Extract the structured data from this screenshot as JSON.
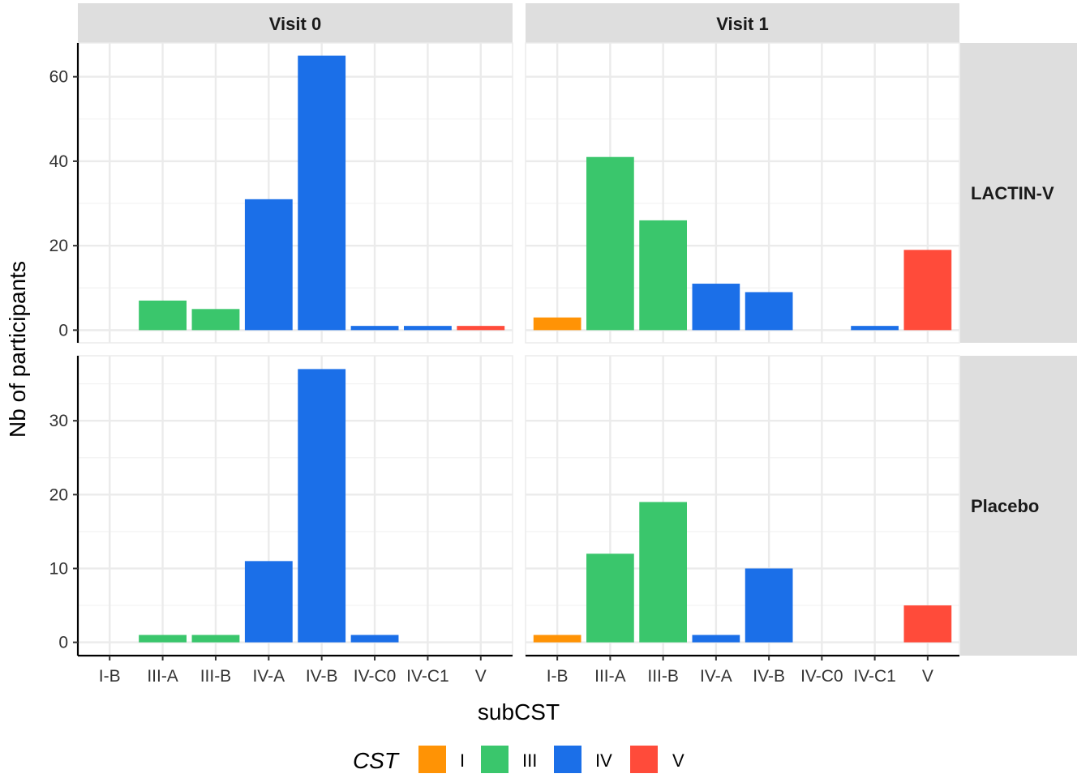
{
  "chart_data": {
    "type": "bar",
    "xlabel": "subCST",
    "ylabel": "Nb of participants",
    "categories": [
      "I-B",
      "III-A",
      "III-B",
      "IV-A",
      "IV-B",
      "IV-C0",
      "IV-C1",
      "V"
    ],
    "category_group": [
      "I",
      "III",
      "III",
      "IV",
      "IV",
      "IV",
      "IV",
      "V"
    ],
    "columns": [
      "Visit 0",
      "Visit 1"
    ],
    "rows": [
      "LACTIN-V",
      "Placebo"
    ],
    "legend": {
      "title": "CST",
      "position": "bottom",
      "items": [
        {
          "label": "I",
          "color": "#FF9305"
        },
        {
          "label": "III",
          "color": "#3AC66C"
        },
        {
          "label": "IV",
          "color": "#1B6FE8"
        },
        {
          "label": "V",
          "color": "#FF4B3A"
        }
      ]
    },
    "grid": true,
    "panels": [
      {
        "row": "LACTIN-V",
        "column": "Visit 0",
        "values": [
          0,
          7,
          5,
          31,
          65,
          1,
          1,
          1
        ],
        "ylim": [
          -3,
          68
        ],
        "yticks": [
          0,
          20,
          40,
          60
        ]
      },
      {
        "row": "LACTIN-V",
        "column": "Visit 1",
        "values": [
          3,
          41,
          26,
          11,
          9,
          0,
          1,
          19
        ],
        "ylim": [
          -3,
          68
        ],
        "yticks": [
          0,
          20,
          40,
          60
        ]
      },
      {
        "row": "Placebo",
        "column": "Visit 0",
        "values": [
          0,
          1,
          1,
          11,
          37,
          1,
          0,
          0
        ],
        "ylim": [
          -1.8,
          38.8
        ],
        "yticks": [
          0,
          10,
          20,
          30
        ]
      },
      {
        "row": "Placebo",
        "column": "Visit 1",
        "values": [
          1,
          12,
          19,
          1,
          10,
          0,
          0,
          5
        ],
        "ylim": [
          -1.8,
          38.8
        ],
        "yticks": [
          0,
          10,
          20,
          30
        ]
      }
    ]
  }
}
